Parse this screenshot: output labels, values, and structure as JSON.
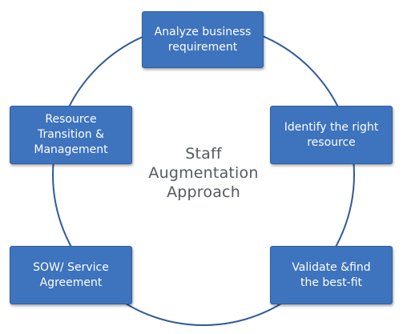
{
  "diagram": {
    "center_title": [
      "Staff",
      "Augmentation",
      "Approach"
    ],
    "steps": [
      {
        "id": "analyze",
        "lines": [
          "Analyze business",
          "requirement"
        ]
      },
      {
        "id": "identify",
        "lines": [
          "Identify the right",
          "resource"
        ]
      },
      {
        "id": "validate",
        "lines": [
          "Validate &find",
          "the best-fit"
        ]
      },
      {
        "id": "sow",
        "lines": [
          "SOW/ Service",
          "Agreement"
        ]
      },
      {
        "id": "transition",
        "lines": [
          "Resource",
          "Transition &",
          "Management"
        ]
      }
    ],
    "colors": {
      "box_fill": "#3e73bd",
      "box_border": "#2f5f9f",
      "ring": "#2e5a9a",
      "center_text": "#555a5f",
      "box_text": "#ffffff"
    }
  }
}
